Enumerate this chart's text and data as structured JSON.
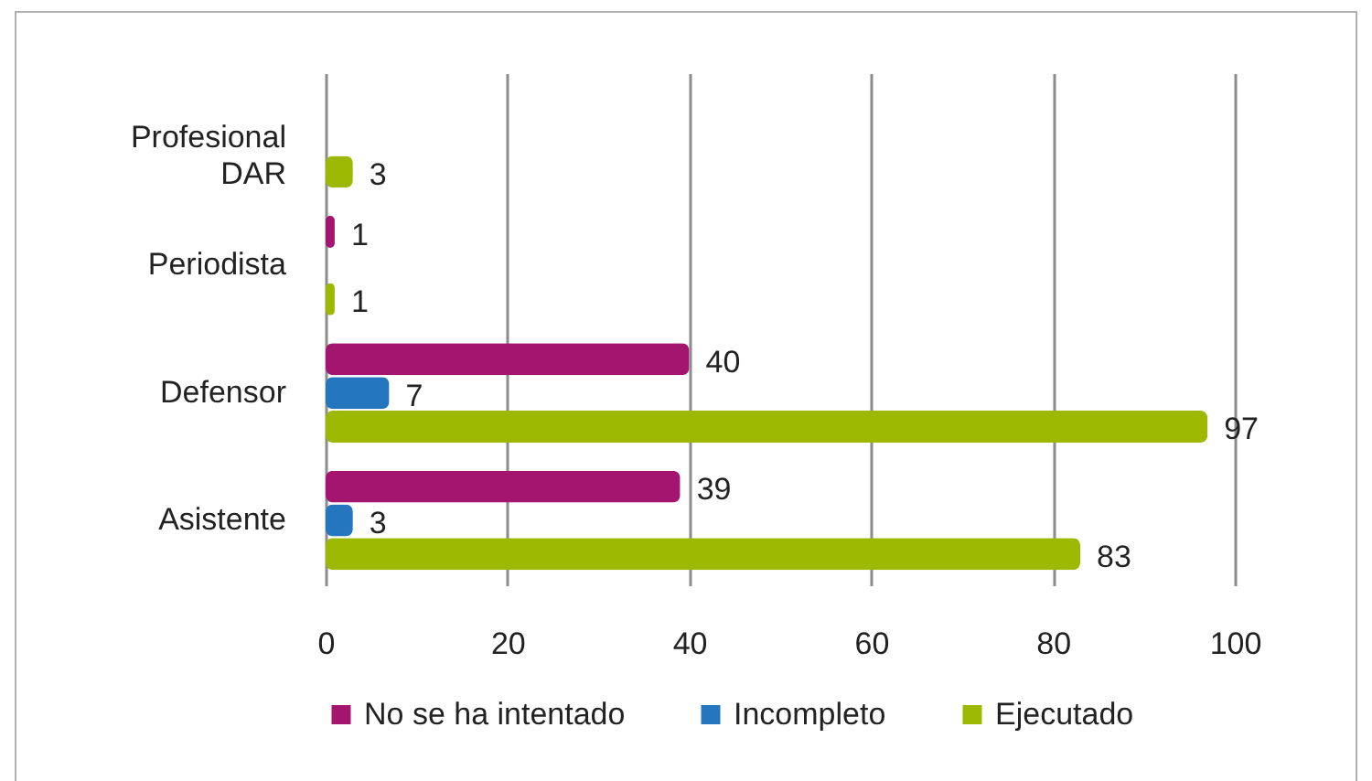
{
  "chart_data": {
    "type": "bar",
    "orientation": "horizontal",
    "categories": [
      "Profesional DAR",
      "Periodista",
      "Defensor",
      "Asistente"
    ],
    "series": [
      {
        "name": "No se ha intentado",
        "color": "#a3156e",
        "values": [
          null,
          1,
          40,
          39
        ]
      },
      {
        "name": "Incompleto",
        "color": "#2477be",
        "values": [
          null,
          null,
          7,
          3
        ]
      },
      {
        "name": "Ejecutado",
        "color": "#9cb800",
        "values": [
          3,
          1,
          97,
          83
        ]
      }
    ],
    "xlim": [
      0,
      100
    ],
    "xticks": [
      0,
      20,
      40,
      60,
      80,
      100
    ],
    "grid": "x",
    "legend": "bottom",
    "data_labels": true
  }
}
